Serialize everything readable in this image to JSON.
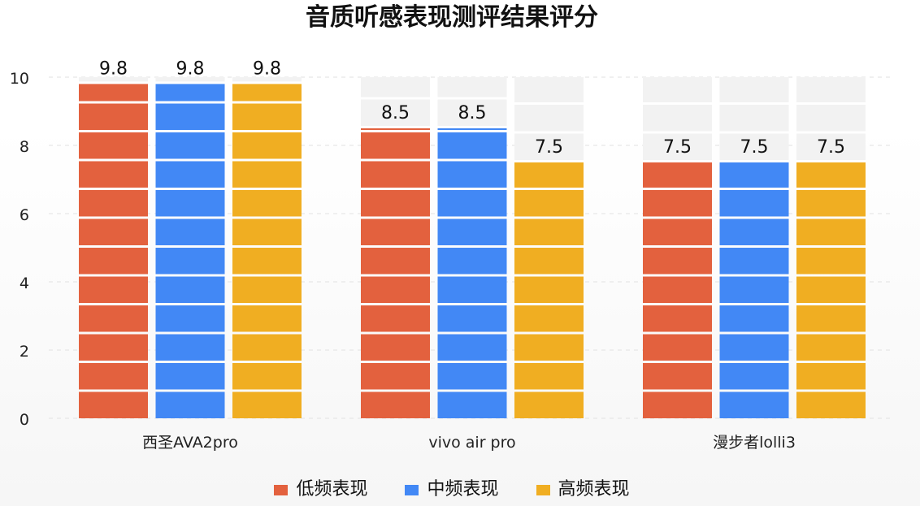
{
  "colors": {
    "low": "#E3613E",
    "mid": "#4288F5",
    "high": "#F0AE22",
    "track": "#F2F2F2"
  },
  "chart_data": {
    "type": "bar",
    "title": "音质听感表现测评结果评分",
    "xlabel": "",
    "ylabel": "",
    "ylim": [
      0,
      10
    ],
    "yticks": [
      "0",
      "2",
      "4",
      "6",
      "8",
      "10"
    ],
    "categories": [
      "西圣AVA2pro",
      "vivo air pro",
      "漫步者lolli3"
    ],
    "series": [
      {
        "name": "低频表现",
        "values": [
          9.8,
          8.5,
          7.5
        ],
        "labels": [
          "9.8",
          "8.5",
          "7.5"
        ]
      },
      {
        "name": "中频表现",
        "values": [
          9.8,
          8.5,
          7.5
        ],
        "labels": [
          "9.8",
          "8.5",
          "7.5"
        ]
      },
      {
        "name": "高频表现",
        "values": [
          9.8,
          7.5,
          7.5
        ],
        "labels": [
          "9.8",
          "7.5",
          "7.5"
        ]
      }
    ],
    "grid": true,
    "legend": "bottom"
  }
}
